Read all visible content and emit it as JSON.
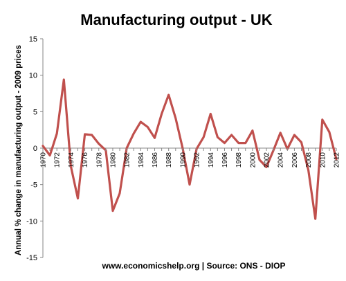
{
  "chart_data": {
    "type": "line",
    "title": "Manufacturing output - UK",
    "ylabel": "Annual % change in manufacturing output - 2009 prices",
    "xlabel": "",
    "source": "www.economicshelp.org | Source: ONS - DIOP",
    "ylim": [
      -15,
      15
    ],
    "ytick_step": 5,
    "grid": false,
    "legend": "none",
    "x_tick_labels": [
      "1970",
      "1972",
      "1974",
      "1976",
      "1978",
      "1980",
      "1982",
      "1984",
      "1986",
      "1988",
      "1990",
      "1992",
      "1994",
      "1996",
      "1998",
      "2000",
      "2002",
      "2004",
      "2006",
      "2008",
      "2010",
      "2012"
    ],
    "series": [
      {
        "color": "#c0504d",
        "x": [
          1970,
          1971,
          1972,
          1973,
          1974,
          1975,
          1976,
          1977,
          1978,
          1979,
          1980,
          1981,
          1982,
          1983,
          1984,
          1985,
          1986,
          1987,
          1988,
          1989,
          1990,
          1991,
          1992,
          1993,
          1994,
          1995,
          1996,
          1997,
          1998,
          1999,
          2000,
          2001,
          2002,
          2003,
          2004,
          2005,
          2006,
          2007,
          2008,
          2009,
          2010,
          2011,
          2012
        ],
        "values": [
          0.3,
          -1.0,
          2.0,
          9.4,
          -2.5,
          -6.9,
          1.9,
          1.8,
          0.6,
          -0.3,
          -8.6,
          -6.2,
          0.0,
          2.0,
          3.6,
          2.9,
          1.4,
          4.7,
          7.3,
          4.1,
          0.0,
          -5.0,
          -0.1,
          1.5,
          4.7,
          1.5,
          0.7,
          1.8,
          0.7,
          0.7,
          2.4,
          -1.6,
          -2.6,
          -0.3,
          2.1,
          -0.1,
          1.8,
          0.8,
          -3.0,
          -9.7,
          3.9,
          2.2,
          -1.5
        ]
      }
    ]
  }
}
